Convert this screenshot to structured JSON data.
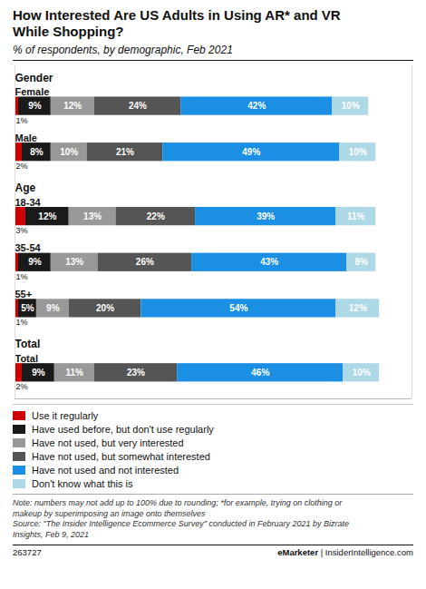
{
  "chart_data": {
    "type": "bar",
    "title": "How Interested Are US Adults in Using AR* and VR\nWhile Shopping?",
    "subtitle": "% of respondents, by demographic, Feb 2021",
    "orientation": "horizontal",
    "stacked": true,
    "data_labels": true,
    "tick_labels": false,
    "legend": "bottom",
    "xlim": [
      0,
      110
    ],
    "categories": [
      "Female",
      "Male",
      "18-34",
      "35-54",
      "55+",
      "Total"
    ],
    "groups": [
      {
        "name": "Gender",
        "categories": [
          "Female",
          "Male"
        ]
      },
      {
        "name": "Age",
        "categories": [
          "18-34",
          "35-54",
          "55+"
        ]
      },
      {
        "name": "Total",
        "categories": [
          "Total"
        ]
      }
    ],
    "series": [
      {
        "name": "Use it regularly",
        "color": "#cc0000",
        "values": [
          1,
          2,
          3,
          1,
          1,
          2
        ],
        "value_labels": [
          null,
          null,
          null,
          null,
          null,
          null
        ]
      },
      {
        "name": "Have used before, but don't use regularly",
        "color": "#1a1a1a",
        "values": [
          9,
          8,
          12,
          9,
          5,
          9
        ],
        "value_labels": [
          "9%",
          "8%",
          "12%",
          "9%",
          "5%",
          "9%"
        ]
      },
      {
        "name": "Have not used, but very interested",
        "color": "#999999",
        "values": [
          12,
          10,
          13,
          13,
          9,
          11
        ],
        "value_labels": [
          "12%",
          "10%",
          "13%",
          "13%",
          "9%",
          "11%"
        ]
      },
      {
        "name": "Have not used, but somewhat interested",
        "color": "#555555",
        "values": [
          24,
          21,
          22,
          26,
          20,
          23
        ],
        "value_labels": [
          "24%",
          "21%",
          "22%",
          "26%",
          "20%",
          "23%"
        ]
      },
      {
        "name": "Have not used and not interested",
        "color": "#1a8fe3",
        "values": [
          42,
          49,
          39,
          43,
          54,
          46
        ],
        "value_labels": [
          "42%",
          "49%",
          "39%",
          "43%",
          "54%",
          "46%"
        ]
      },
      {
        "name": "Don't know what this is",
        "color": "#add8e6",
        "values": [
          10,
          10,
          11,
          8,
          12,
          10
        ],
        "value_labels": [
          "10%",
          "10%",
          "11%",
          "8%",
          "12%",
          "10%"
        ]
      }
    ],
    "annotations": [
      {
        "category": "Female",
        "text": "1%"
      },
      {
        "category": "Male",
        "text": "2%"
      },
      {
        "category": "18-34",
        "text": "3%"
      },
      {
        "category": "35-54",
        "text": "1%"
      },
      {
        "category": "55+",
        "text": "1%"
      },
      {
        "category": "Total",
        "text": "2%"
      }
    ],
    "notes": [
      "Note: numbers may not add up to 100% due to rounding; *for example, trying on clothing or",
      "makeup by superimposing an image onto themselves",
      "Source: \"The Insider Intelligence Ecommerce Survey\" conducted in February 2021 by Bizrate",
      "Insights, Feb 9, 2021"
    ],
    "footer": {
      "left": "263727",
      "right": [
        "eMarketer",
        " | InsiderIntelligence.com"
      ]
    }
  }
}
